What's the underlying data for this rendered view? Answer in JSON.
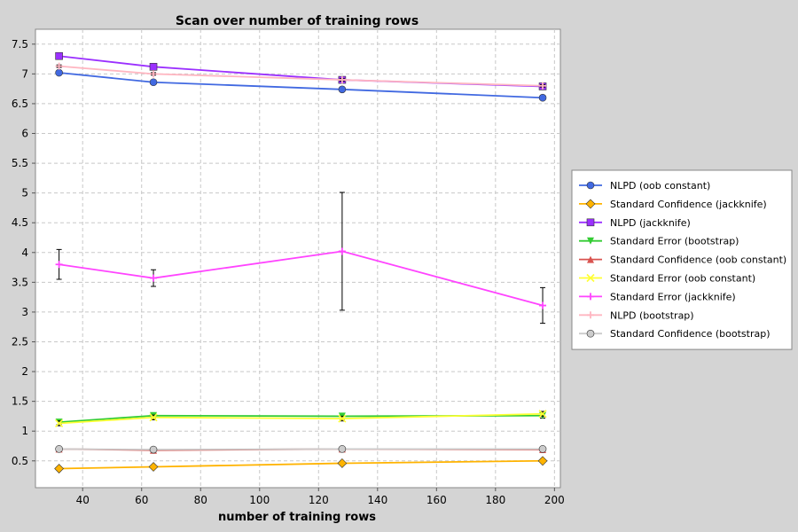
{
  "chart_data": {
    "type": "line",
    "title": "Scan over number of training rows",
    "xlabel": "number of training rows",
    "ylabel": "",
    "xlim": [
      24,
      202
    ],
    "ylim": [
      0.05,
      7.75
    ],
    "x_ticks": [
      40,
      60,
      80,
      100,
      120,
      140,
      160,
      180,
      200
    ],
    "y_ticks": [
      0.5,
      1,
      1.5,
      2,
      2.5,
      3,
      3.5,
      4,
      4.5,
      5,
      5.5,
      6,
      6.5,
      7,
      7.5
    ],
    "x_tick_labels": [
      "40",
      "60",
      "80",
      "100",
      "120",
      "140",
      "160",
      "180",
      "200"
    ],
    "y_tick_labels": [
      "0.5",
      "1",
      "1.5",
      "2",
      "2.5",
      "3",
      "3.5",
      "4",
      "4.5",
      "5",
      "5.5",
      "6",
      "6.5",
      "7",
      "7.5"
    ],
    "grid": true,
    "legend_position": "right",
    "x": [
      32,
      64,
      128,
      196
    ],
    "series": [
      {
        "name": "NLPD (oob constant)",
        "color": "#4169e1",
        "marker": "circle",
        "values": [
          7.02,
          6.86,
          6.74,
          6.6
        ],
        "errors": [
          0.03,
          0.03,
          0.03,
          0.03
        ]
      },
      {
        "name": "Standard Confidence (jackknife)",
        "color": "#ffb300",
        "marker": "diamond",
        "values": [
          0.37,
          0.4,
          0.46,
          0.5
        ],
        "errors": [
          0.02,
          0.02,
          0.02,
          0.02
        ]
      },
      {
        "name": "NLPD (jackknife)",
        "color": "#9b30ff",
        "marker": "square",
        "values": [
          7.3,
          7.12,
          6.9,
          6.79
        ],
        "errors": [
          0.03,
          0.03,
          0.03,
          0.03
        ]
      },
      {
        "name": "Standard Error (bootstrap)",
        "color": "#33cc33",
        "marker": "triangle-down",
        "values": [
          1.15,
          1.26,
          1.25,
          1.26
        ],
        "errors": [
          0.04,
          0.04,
          0.05,
          0.04
        ]
      },
      {
        "name": "Standard Confidence (oob constant)",
        "color": "#d9534f",
        "marker": "triangle-up",
        "values": [
          0.7,
          0.68,
          0.7,
          0.69
        ],
        "errors": [
          0.02,
          0.02,
          0.02,
          0.02
        ]
      },
      {
        "name": "Standard Error (oob constant)",
        "color": "#ffff33",
        "marker": "x",
        "values": [
          1.13,
          1.23,
          1.21,
          1.29
        ],
        "errors": [
          0.04,
          0.04,
          0.04,
          0.04
        ]
      },
      {
        "name": "Standard Error (jackknife)",
        "color": "#ff44ff",
        "marker": "plus",
        "values": [
          3.8,
          3.57,
          4.02,
          3.11
        ],
        "errors": [
          0.25,
          0.14,
          0.99,
          0.3
        ]
      },
      {
        "name": "NLPD (bootstrap)",
        "color": "#ffb6c1",
        "marker": "plus",
        "values": [
          7.13,
          7.0,
          6.9,
          6.8
        ],
        "errors": [
          0.02,
          0.02,
          0.02,
          0.02
        ]
      },
      {
        "name": "Standard Confidence (bootstrap)",
        "color": "#cccccc",
        "marker": "circle",
        "values": [
          0.7,
          0.69,
          0.7,
          0.7
        ],
        "errors": [
          0.02,
          0.02,
          0.02,
          0.02
        ]
      }
    ]
  }
}
